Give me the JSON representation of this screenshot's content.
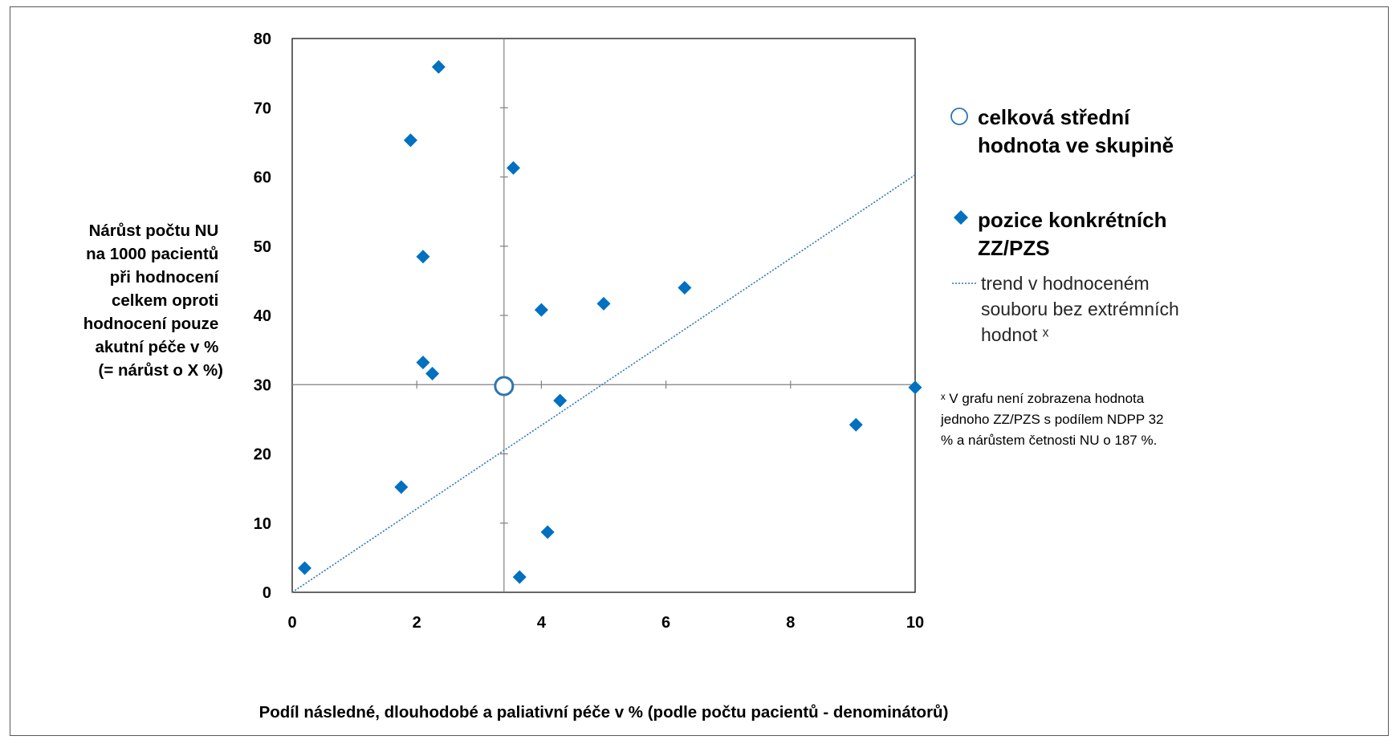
{
  "chart_data": {
    "type": "scatter",
    "xlabel": "Podíl následné, dlouhodobé a paliativní péče v % (podle počtu pacientů - denominátorů)",
    "ylabel_lines": [
      "Nárůst počtu NU",
      "na 1000 pacientů",
      "při hodnocení",
      "celkem oproti",
      "hodnocení pouze",
      "akutní péče v %",
      "(= nárůst o X %)"
    ],
    "xlim": [
      0,
      10
    ],
    "ylim": [
      0,
      80
    ],
    "x_ticks": [
      "0",
      "2",
      "4",
      "6",
      "8",
      "10"
    ],
    "y_ticks": [
      "0",
      "10",
      "20",
      "30",
      "40",
      "50",
      "60",
      "70",
      "80"
    ],
    "grid": false,
    "legend_position": "right",
    "colors": {
      "points": "#0070C0",
      "mean": "#2E75B6",
      "trend": "#2E75B6",
      "ref_lines": "#808080"
    },
    "mean_point": {
      "x": 3.4,
      "y": 29.8
    },
    "reference_lines": {
      "x": 3.4,
      "y": 30
    },
    "series": [
      {
        "name": "pozice konkrétních ZZ/PZS",
        "points": [
          {
            "x": 0.2,
            "y": 3.5
          },
          {
            "x": 1.75,
            "y": 15.2
          },
          {
            "x": 1.9,
            "y": 65.3
          },
          {
            "x": 2.1,
            "y": 48.5
          },
          {
            "x": 2.1,
            "y": 33.2
          },
          {
            "x": 2.25,
            "y": 31.6
          },
          {
            "x": 2.35,
            "y": 75.9
          },
          {
            "x": 3.55,
            "y": 61.3
          },
          {
            "x": 3.65,
            "y": 2.2
          },
          {
            "x": 4.0,
            "y": 40.8
          },
          {
            "x": 4.1,
            "y": 8.7
          },
          {
            "x": 4.3,
            "y": 27.7
          },
          {
            "x": 5.0,
            "y": 41.7
          },
          {
            "x": 6.3,
            "y": 44.0
          },
          {
            "x": 9.05,
            "y": 24.2
          },
          {
            "x": 10.0,
            "y": 29.6
          }
        ]
      }
    ],
    "trend_line": {
      "from": {
        "x": 0,
        "y": 0
      },
      "to": {
        "x": 10,
        "y": 60.3
      }
    },
    "legend": {
      "mean_lines": [
        "celková střední",
        "hodnota ve skupině"
      ],
      "points_lines": [
        "pozice konkrétních",
        "ZZ/PZS"
      ],
      "trend_lines": [
        "trend v hodnoceném",
        "souboru bez extrémních",
        "hodnot ˣ"
      ],
      "note_lines": [
        "ˣ V grafu není zobrazena hodnota",
        "jednoho ZZ/PZS s podílem NDPP 32",
        "% a nárůstem četnosti NU o 187 %."
      ]
    }
  }
}
